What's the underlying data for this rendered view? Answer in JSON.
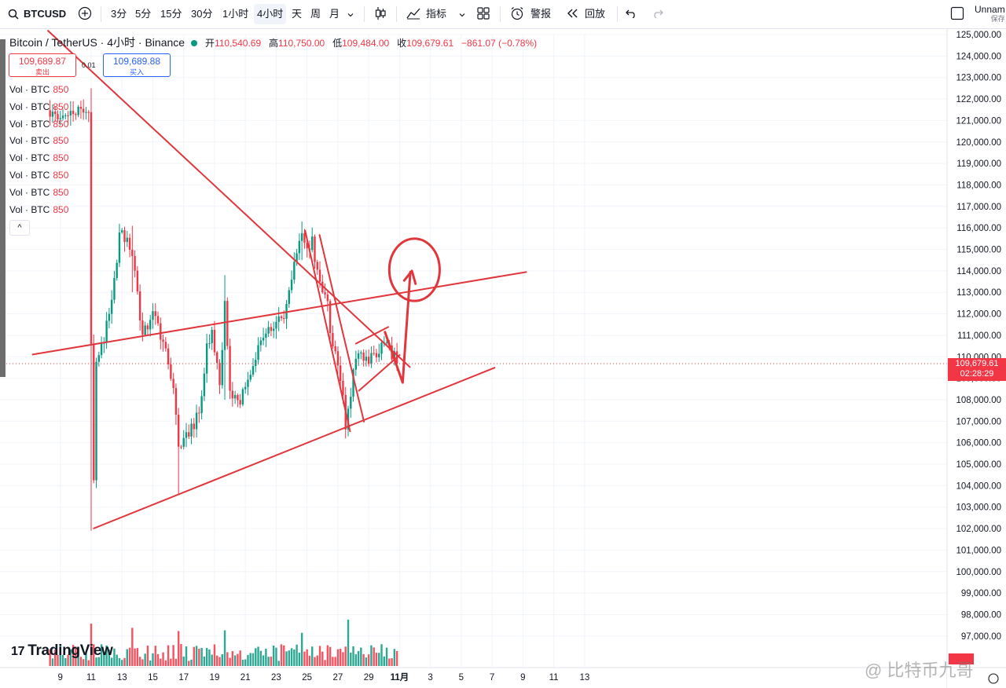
{
  "toolbar": {
    "symbol": "BTCUSD",
    "intervals": [
      "3分",
      "5分",
      "15分",
      "30分",
      "1小时",
      "4小时",
      "天",
      "周",
      "月"
    ],
    "active_interval": "4小时",
    "indicators": "指标",
    "alert": "警报",
    "replay": "回放",
    "layout_name": "Unnam",
    "save": "保存"
  },
  "legend": {
    "title": "Bitcoin / TetherUS · 4小时 · Binance",
    "open_label": "开",
    "open": "110,540.69",
    "high_label": "高",
    "high": "110,750.00",
    "low_label": "低",
    "low": "109,484.00",
    "close_label": "收",
    "close": "109,679.61",
    "change": "−861.07 (−0.78%)"
  },
  "trade": {
    "sell_price": "109,689.87",
    "sell_label": "卖出",
    "buy_price": "109,689.88",
    "buy_label": "买入",
    "spread": "0.01"
  },
  "volume_rows": [
    {
      "label": "Vol · BTC",
      "value": "850"
    },
    {
      "label": "Vol · BTC",
      "value": "850"
    },
    {
      "label": "Vol · BTC",
      "value": "850"
    },
    {
      "label": "Vol · BTC",
      "value": "850"
    },
    {
      "label": "Vol · BTC",
      "value": "850"
    },
    {
      "label": "Vol · BTC",
      "value": "850"
    },
    {
      "label": "Vol · BTC",
      "value": "850"
    },
    {
      "label": "Vol · BTC",
      "value": "850"
    }
  ],
  "collapse_glyph": "^",
  "logo": "TradingView",
  "logo_mark": "17",
  "current_price": {
    "price": "109,679.61",
    "countdown": "02:28:29"
  },
  "watermark": "@ 比特币九哥",
  "colors": {
    "up": "#089981",
    "down": "#f23645",
    "drawing": "#e0363c",
    "accent": "#2962ff"
  },
  "chart_data": {
    "type": "candlestick",
    "interval": "4小时",
    "y_range": [
      96500,
      125000
    ],
    "y_ticks": [
      97000,
      98000,
      99000,
      100000,
      101000,
      102000,
      103000,
      104000,
      105000,
      106000,
      107000,
      108000,
      109000,
      110000,
      111000,
      112000,
      113000,
      114000,
      115000,
      116000,
      117000,
      118000,
      119000,
      120000,
      121000,
      122000,
      123000,
      124000,
      125000
    ],
    "x_labels": [
      "9",
      "11",
      "13",
      "15",
      "17",
      "19",
      "21",
      "23",
      "25",
      "27",
      "29",
      "11月",
      "3",
      "5",
      "7",
      "9",
      "11",
      "13"
    ],
    "bars_per_day": 6,
    "last_close": 109679.61,
    "anchors": [
      {
        "i": 0,
        "p": 121200
      },
      {
        "i": 12,
        "p": 121500
      },
      {
        "i": 15,
        "p": 121700
      },
      {
        "i": 16,
        "p": 110500
      },
      {
        "i": 17,
        "p": 104000
      },
      {
        "i": 18,
        "p": 109500
      },
      {
        "i": 21,
        "p": 110800
      },
      {
        "i": 24,
        "p": 112500
      },
      {
        "i": 27,
        "p": 115500
      },
      {
        "i": 30,
        "p": 115700
      },
      {
        "i": 33,
        "p": 113800
      },
      {
        "i": 36,
        "p": 111000
      },
      {
        "i": 40,
        "p": 111800
      },
      {
        "i": 44,
        "p": 110800
      },
      {
        "i": 48,
        "p": 108500
      },
      {
        "i": 50,
        "p": 105600
      },
      {
        "i": 55,
        "p": 106800
      },
      {
        "i": 58,
        "p": 107200
      },
      {
        "i": 61,
        "p": 110300
      },
      {
        "i": 63,
        "p": 111300
      },
      {
        "i": 66,
        "p": 108600
      },
      {
        "i": 68,
        "p": 112700
      },
      {
        "i": 70,
        "p": 108300
      },
      {
        "i": 74,
        "p": 108000
      },
      {
        "i": 77,
        "p": 108600
      },
      {
        "i": 80,
        "p": 110000
      },
      {
        "i": 84,
        "p": 111000
      },
      {
        "i": 88,
        "p": 111500
      },
      {
        "i": 91,
        "p": 112000
      },
      {
        "i": 94,
        "p": 113500
      },
      {
        "i": 98,
        "p": 115800
      },
      {
        "i": 100,
        "p": 114800
      },
      {
        "i": 102,
        "p": 115400
      },
      {
        "i": 105,
        "p": 113200
      },
      {
        "i": 108,
        "p": 112300
      },
      {
        "i": 110,
        "p": 110600
      },
      {
        "i": 113,
        "p": 109000
      },
      {
        "i": 115,
        "p": 106800
      },
      {
        "i": 117,
        "p": 108400
      },
      {
        "i": 119,
        "p": 110200
      },
      {
        "i": 123,
        "p": 109800
      },
      {
        "i": 127,
        "p": 110300
      },
      {
        "i": 131,
        "p": 110700
      },
      {
        "i": 135,
        "p": 109680
      }
    ],
    "spikes": [
      {
        "i": 16,
        "high": 122500,
        "low": 101900
      },
      {
        "i": 32,
        "high": 116100,
        "low": 113000
      },
      {
        "i": 50,
        "high": 106000,
        "low": 103600
      },
      {
        "i": 68,
        "high": 113800,
        "low": 108000
      },
      {
        "i": 98,
        "high": 116300,
        "low": 114500
      },
      {
        "i": 116,
        "high": 106800,
        "low": 106300
      }
    ],
    "drawings": [
      {
        "kind": "line",
        "from": {
          "x": -1.0,
          "p": 125200
        },
        "to": {
          "x": 140.2,
          "p": 109500
        }
      },
      {
        "kind": "line",
        "from": {
          "x": 16.8,
          "p": 102000
        },
        "to": {
          "x": 173.2,
          "p": 109500
        }
      },
      {
        "kind": "line",
        "from": {
          "x": -7.0,
          "p": 110100
        },
        "to": {
          "x": 185.5,
          "p": 113950
        }
      },
      {
        "kind": "line",
        "from": {
          "x": 99.2,
          "p": 115900
        },
        "to": {
          "x": 116.8,
          "p": 106500
        }
      },
      {
        "kind": "line",
        "from": {
          "x": 104.8,
          "p": 115700
        },
        "to": {
          "x": 122.2,
          "p": 106950
        }
      },
      {
        "kind": "line",
        "from": {
          "x": 118.8,
          "p": 110600
        },
        "to": {
          "x": 131.8,
          "p": 111400
        }
      },
      {
        "kind": "line",
        "from": {
          "x": 120.0,
          "p": 108400
        },
        "to": {
          "x": 136.2,
          "p": 110100
        }
      },
      {
        "kind": "polyline",
        "points": [
          {
            "x": 130.3,
            "p": 111150
          },
          {
            "x": 137.2,
            "p": 108800
          },
          {
            "x": 140.2,
            "p": 113950
          }
        ]
      },
      {
        "kind": "polyline",
        "points": [
          {
            "x": 137.8,
            "p": 113550
          },
          {
            "x": 140.8,
            "p": 114000
          },
          {
            "x": 142.2,
            "p": 113400
          }
        ]
      },
      {
        "kind": "ellipse",
        "center": {
          "x": 141.8,
          "p": 114050
        },
        "rx_bars": 9.8,
        "ry_price": 1450
      }
    ]
  }
}
